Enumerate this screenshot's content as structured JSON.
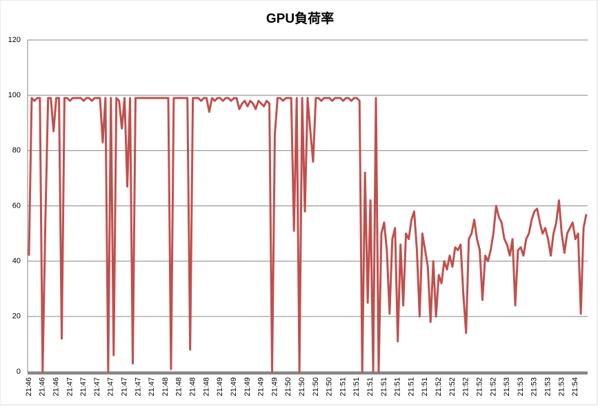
{
  "chart_data": {
    "type": "line",
    "title": "GPU負荷率",
    "categories": [
      "21:46",
      null,
      null,
      null,
      null,
      "21:46",
      null,
      null,
      null,
      null,
      "21:46",
      null,
      null,
      null,
      null,
      "21:47",
      null,
      null,
      null,
      null,
      "21:47",
      null,
      null,
      null,
      null,
      "21:47",
      null,
      null,
      null,
      null,
      "21:47",
      null,
      null,
      null,
      null,
      "21:47",
      null,
      null,
      null,
      null,
      "21:47",
      null,
      null,
      null,
      null,
      "21:47",
      null,
      null,
      null,
      null,
      "21:48",
      null,
      null,
      null,
      null,
      "21:48",
      null,
      null,
      null,
      null,
      "21:48",
      null,
      null,
      null,
      null,
      "21:48",
      null,
      null,
      null,
      null,
      "21:49",
      null,
      null,
      null,
      null,
      "21:49",
      null,
      null,
      null,
      null,
      "21:49",
      null,
      null,
      null,
      null,
      "21:49",
      null,
      null,
      null,
      null,
      "21:49",
      null,
      null,
      null,
      null,
      "21:50",
      null,
      null,
      null,
      null,
      "21:50",
      null,
      null,
      null,
      null,
      "21:50",
      null,
      null,
      null,
      null,
      "21:50",
      null,
      null,
      null,
      null,
      "21:51",
      null,
      null,
      null,
      null,
      "21:51",
      null,
      null,
      null,
      null,
      "21:51",
      null,
      null,
      null,
      null,
      "21:51",
      null,
      null,
      null,
      null,
      "21:51",
      null,
      null,
      null,
      null,
      "21:51",
      null,
      null,
      null,
      null,
      "21:51",
      null,
      null,
      null,
      null,
      "21:52",
      null,
      null,
      null,
      null,
      "21:52",
      null,
      null,
      null,
      null,
      "21:52",
      null,
      null,
      null,
      null,
      "21:52",
      null,
      null,
      null,
      null,
      "21:52",
      null,
      null,
      null,
      null,
      "21:53",
      null,
      null,
      null,
      null,
      "21:53",
      null,
      null,
      null,
      null,
      "21:53",
      null,
      null,
      null,
      null,
      "21:53",
      null,
      null,
      null,
      null,
      "21:53",
      null,
      null,
      null,
      null,
      "21:54",
      null,
      null,
      null,
      null
    ],
    "series": [
      {
        "name": "GPU",
        "color": "#c0504d",
        "values": [
          42,
          99,
          98,
          99,
          99,
          0,
          54,
          99,
          99,
          87,
          99,
          99,
          12,
          99,
          99,
          98,
          99,
          99,
          99,
          99,
          98,
          99,
          99,
          98,
          99,
          99,
          99,
          83,
          99,
          0,
          99,
          6,
          99,
          98,
          88,
          99,
          67,
          99,
          3,
          99,
          99,
          99,
          99,
          99,
          99,
          99,
          99,
          99,
          99,
          99,
          99,
          99,
          1,
          99,
          99,
          99,
          99,
          99,
          99,
          8,
          99,
          99,
          99,
          98,
          99,
          99,
          94,
          99,
          98,
          99,
          99,
          98,
          99,
          99,
          98,
          99,
          99,
          95,
          97,
          98,
          96,
          98,
          97,
          95,
          98,
          97,
          96,
          98,
          97,
          0,
          86,
          99,
          99,
          98,
          99,
          99,
          99,
          51,
          99,
          0,
          99,
          58,
          99,
          87,
          76,
          99,
          99,
          98,
          99,
          99,
          99,
          98,
          99,
          99,
          99,
          98,
          99,
          99,
          98,
          99,
          99,
          98,
          0,
          72,
          25,
          62,
          0,
          99,
          0,
          50,
          54,
          44,
          21,
          48,
          52,
          11,
          46,
          24,
          50,
          48,
          55,
          58,
          44,
          20,
          50,
          44,
          38,
          18,
          40,
          20,
          35,
          32,
          40,
          37,
          42,
          38,
          45,
          44,
          46,
          28,
          14,
          48,
          50,
          55,
          48,
          44,
          26,
          42,
          40,
          44,
          50,
          60,
          56,
          54,
          48,
          46,
          42,
          48,
          24,
          44,
          45,
          42,
          48,
          50,
          55,
          58,
          59,
          54,
          50,
          52,
          48,
          42,
          50,
          54,
          62,
          50,
          43,
          50,
          52,
          54,
          48,
          50,
          21,
          52,
          57
        ]
      }
    ],
    "ylim": [
      0,
      120
    ],
    "yticks": [
      0,
      20,
      40,
      60,
      80,
      100,
      120
    ],
    "grid": true
  }
}
